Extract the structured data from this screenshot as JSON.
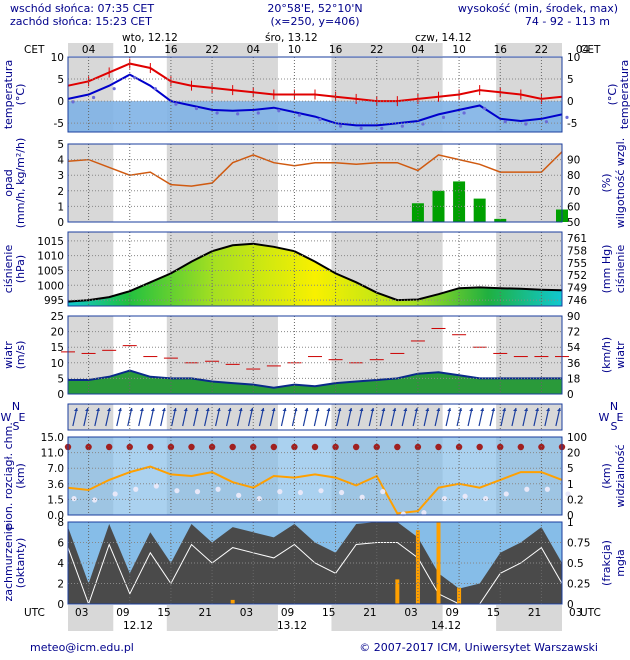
{
  "header": {
    "sunrise": "wschód słońca: 07:35 CET",
    "sunset": "zachód słońca: 15:23 CET",
    "coords": "20°58'E, 52°10'N",
    "grid": "(x=250,  y=406)",
    "elevation_label": "wysokość (min, środek, max)",
    "elevation_values": "74 - 92 - 113 m"
  },
  "time_axis": {
    "cet_label": "CET",
    "utc_label": "UTC",
    "days_top": [
      "wto, 12.12",
      "śro, 13.12",
      "czw, 14.12"
    ],
    "hours_top": [
      "04",
      "10",
      "16",
      "22",
      "04",
      "10",
      "16",
      "22",
      "04",
      "10",
      "16",
      "22",
      "04"
    ],
    "hours_bottom": [
      "03",
      "09",
      "15",
      "21",
      "03",
      "09",
      "15",
      "21",
      "03",
      "09",
      "15",
      "21",
      "03"
    ],
    "days_bottom": [
      "12.12",
      "13.12",
      "14.12"
    ]
  },
  "footer": {
    "email": "meteo@icm.edu.pl",
    "copyright": "© 2007-2017 ICM, Uniwersytet Warszawski"
  },
  "colors": {
    "frame_blue": "#1a3d9e",
    "day_bg": "#ffffff",
    "night_bg": "#d8d8d8",
    "cold_fill": "#7fb3e6",
    "temp_red": "#e00000",
    "temp_blue": "#0000cc",
    "humidity": "#d05a10",
    "rain": "#00a000",
    "wind_gust": "#cc0000",
    "fog": "#ffa000"
  },
  "chart_data": [
    {
      "type": "line",
      "name": "temperature",
      "ylabel_left": "temperatura (°C)",
      "ylabel_right": "temperatura (°C)",
      "ylim": [
        -7,
        10
      ],
      "yticks": [
        10,
        5,
        0,
        -5
      ],
      "hours_from_start": [
        0,
        3,
        6,
        9,
        12,
        15,
        18,
        21,
        24,
        27,
        30,
        33,
        36,
        39,
        42,
        45,
        48,
        51,
        54,
        57,
        60,
        63,
        66,
        69,
        72
      ],
      "series": [
        {
          "values": [
            3.5,
            4.5,
            6.5,
            8.5,
            7.5,
            4.5,
            3.5,
            3,
            2.5,
            2,
            1.5,
            1.5,
            1.5,
            1,
            0.5,
            0,
            0,
            0.5,
            1,
            1.5,
            2.5,
            2,
            1.5,
            0.5,
            1
          ]
        },
        {
          "values": [
            0.5,
            1.5,
            3.5,
            6,
            3.5,
            0,
            -1,
            -2,
            -2.2,
            -2,
            -1.5,
            -2.5,
            -3.5,
            -5,
            -5.5,
            -5.5,
            -5,
            -4.5,
            -3,
            -2,
            -1,
            -4,
            -4.5,
            -4,
            -3
          ]
        }
      ]
    },
    {
      "type": "bar",
      "name": "precipitation",
      "ylabel_left": "opad (mm/h, kg/m²/h)",
      "ylabel_right": "wilgotność wzgl. (%)",
      "ylim_left": [
        0,
        5
      ],
      "ylim_right": [
        50,
        100
      ],
      "yticks_left": [
        5,
        4,
        3,
        2,
        1,
        0
      ],
      "yticks_right": [
        90,
        80,
        70,
        60,
        50
      ],
      "hours_from_start": [
        0,
        3,
        6,
        9,
        12,
        15,
        18,
        21,
        24,
        27,
        30,
        33,
        36,
        39,
        42,
        45,
        48,
        51,
        54,
        57,
        60,
        63,
        66,
        69,
        72
      ],
      "humidity": [
        89,
        90,
        85,
        80,
        82,
        74,
        73,
        75,
        88,
        93,
        88,
        86,
        88,
        88,
        87,
        88,
        88,
        83,
        93,
        90,
        87,
        82,
        82,
        82,
        95
      ],
      "precip": [
        0,
        0,
        0,
        0,
        0,
        0,
        0,
        0,
        0,
        0,
        0,
        0,
        0,
        0,
        0,
        0,
        0,
        1.2,
        2.0,
        2.6,
        1.5,
        0.2,
        0,
        0,
        0.8
      ]
    },
    {
      "type": "area",
      "name": "pressure",
      "ylabel_left": "ciśnienie (hPa)",
      "ylabel_right": "(mm Hg) ciśnienie",
      "ylim": [
        993,
        1018
      ],
      "yticks_left": [
        1015,
        1010,
        1005,
        1000,
        995
      ],
      "yticks_right": [
        761,
        758,
        755,
        752,
        749,
        746
      ],
      "hours_from_start": [
        0,
        3,
        6,
        9,
        12,
        15,
        18,
        21,
        24,
        27,
        30,
        33,
        36,
        39,
        42,
        45,
        48,
        51,
        54,
        57,
        60,
        63,
        66,
        69,
        72
      ],
      "values": [
        994.5,
        995,
        996,
        998,
        1001,
        1004,
        1008,
        1011.5,
        1013.5,
        1014,
        1013,
        1011.5,
        1008,
        1004,
        1001,
        997.5,
        995,
        995.2,
        997,
        999,
        999.3,
        999,
        998.8,
        998.5,
        998.3
      ]
    },
    {
      "type": "line",
      "name": "wind",
      "ylabel_left": "wiatr (m/s)",
      "ylabel_right": "(km/h) wiatr",
      "ylim": [
        0,
        25
      ],
      "yticks_left": [
        25,
        20,
        15,
        10,
        5,
        0
      ],
      "yticks_right": [
        90,
        72,
        54,
        36,
        18,
        0
      ],
      "hours_from_start": [
        0,
        3,
        6,
        9,
        12,
        15,
        18,
        21,
        24,
        27,
        30,
        33,
        36,
        39,
        42,
        45,
        48,
        51,
        54,
        57,
        60,
        63,
        66,
        69,
        72
      ],
      "speed": [
        4.5,
        4.5,
        5.5,
        7.5,
        5.5,
        5,
        5,
        4,
        3.5,
        3,
        2,
        3,
        2.5,
        3.5,
        4,
        4.5,
        5,
        6.5,
        7,
        6,
        5,
        5,
        5,
        5,
        5
      ],
      "gust": [
        13.5,
        13,
        14,
        15.5,
        12,
        11.5,
        10,
        10.5,
        9.5,
        8,
        9,
        10,
        12,
        11,
        10,
        11,
        13,
        17,
        21,
        19,
        15,
        13,
        12,
        12,
        12
      ]
    },
    {
      "type": "line",
      "name": "visibility",
      "ylabel_left": "pion. rozciągł. chm. (km)",
      "ylabel_right": "(km) widzialność",
      "yticks_left": [
        15.0,
        11.0,
        7.0,
        3.6,
        1.5,
        0.0
      ],
      "yticks_right": [
        100,
        20,
        5,
        1,
        0.2,
        0
      ],
      "hours_from_start": [
        0,
        3,
        6,
        9,
        12,
        15,
        18,
        21,
        24,
        27,
        30,
        33,
        36,
        39,
        42,
        45,
        48,
        51,
        54,
        57,
        60,
        63,
        66,
        69,
        72
      ],
      "visibility_frac": [
        0.35,
        0.32,
        0.45,
        0.55,
        0.62,
        0.52,
        0.5,
        0.55,
        0.42,
        0.35,
        0.5,
        0.48,
        0.52,
        0.48,
        0.38,
        0.5,
        0.02,
        0.05,
        0.35,
        0.4,
        0.35,
        0.45,
        0.55,
        0.55,
        0.45
      ]
    },
    {
      "type": "area",
      "name": "cloud cover",
      "ylabel_left": "zachmurzenie (oktanty)",
      "ylabel_right": "(frakcja) mgła",
      "ylim": [
        0,
        8
      ],
      "yticks_left": [
        8,
        6,
        4,
        2,
        0
      ],
      "yticks_right": [
        1,
        0.75,
        0.5,
        0.25,
        0
      ],
      "hours_from_start": [
        0,
        3,
        6,
        9,
        12,
        15,
        18,
        21,
        24,
        27,
        30,
        33,
        36,
        39,
        42,
        45,
        48,
        51,
        54,
        57,
        60,
        63,
        66,
        69,
        72
      ],
      "cloud": [
        7.5,
        2,
        7.8,
        3,
        7,
        4,
        7.8,
        6,
        7.5,
        7,
        6.5,
        7.8,
        6,
        5,
        7.8,
        8,
        8,
        6.5,
        3,
        1.5,
        2,
        5,
        6,
        7.5,
        4
      ],
      "fog": [
        0,
        0,
        0,
        0,
        0,
        0,
        0,
        0,
        0.05,
        0,
        0,
        0,
        0,
        0,
        0,
        0,
        0.3,
        0.9,
        1.0,
        0.2,
        0,
        0,
        0,
        0,
        0
      ]
    }
  ]
}
